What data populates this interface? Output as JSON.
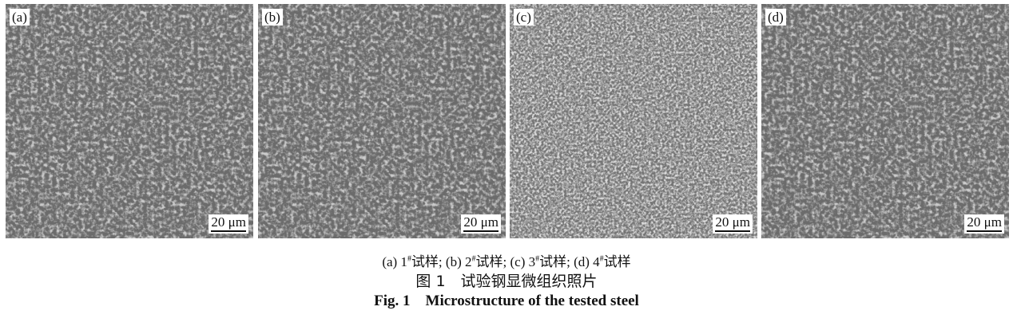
{
  "panels": [
    {
      "label": "(a)",
      "scale": "20 μm"
    },
    {
      "label": "(b)",
      "scale": "20 μm"
    },
    {
      "label": "(c)",
      "scale": "20 μm"
    },
    {
      "label": "(d)",
      "scale": "20 μm"
    }
  ],
  "caption": {
    "subcaption": [
      {
        "prefix": "(a) 1",
        "sup": "#",
        "suffix": "试样; "
      },
      {
        "prefix": "(b) 2",
        "sup": "#",
        "suffix": "试样; "
      },
      {
        "prefix": "(c) 3",
        "sup": "#",
        "suffix": "试样; "
      },
      {
        "prefix": "(d) 4",
        "sup": "#",
        "suffix": "试样"
      }
    ],
    "title_cn": "图 1　试验钢显微组织照片",
    "title_en": "Fig. 1　Microstructure of the tested steel"
  }
}
